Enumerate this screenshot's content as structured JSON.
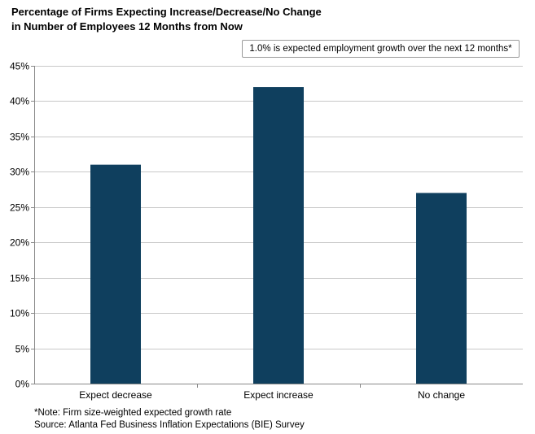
{
  "chart_data": {
    "type": "bar",
    "title_lines": [
      "Percentage of Firms Expecting Increase/Decrease/No Change",
      "in Number of Employees 12 Months  from Now"
    ],
    "annotation": "1.0% is expected employment growth over the next 12 months*",
    "categories": [
      "Expect decrease",
      "Expect increase",
      "No change"
    ],
    "values": [
      31,
      42,
      27
    ],
    "y_ticks": [
      "0%",
      "5%",
      "10%",
      "15%",
      "20%",
      "25%",
      "30%",
      "35%",
      "40%",
      "45%"
    ],
    "ylim": [
      0,
      45
    ],
    "grid": true,
    "bar_color": "#0f3f5e",
    "notes": [
      "*Note: Firm size-weighted expected growth rate",
      "Source: Atlanta Fed Business Inflation Expectations (BIE) Survey"
    ]
  }
}
